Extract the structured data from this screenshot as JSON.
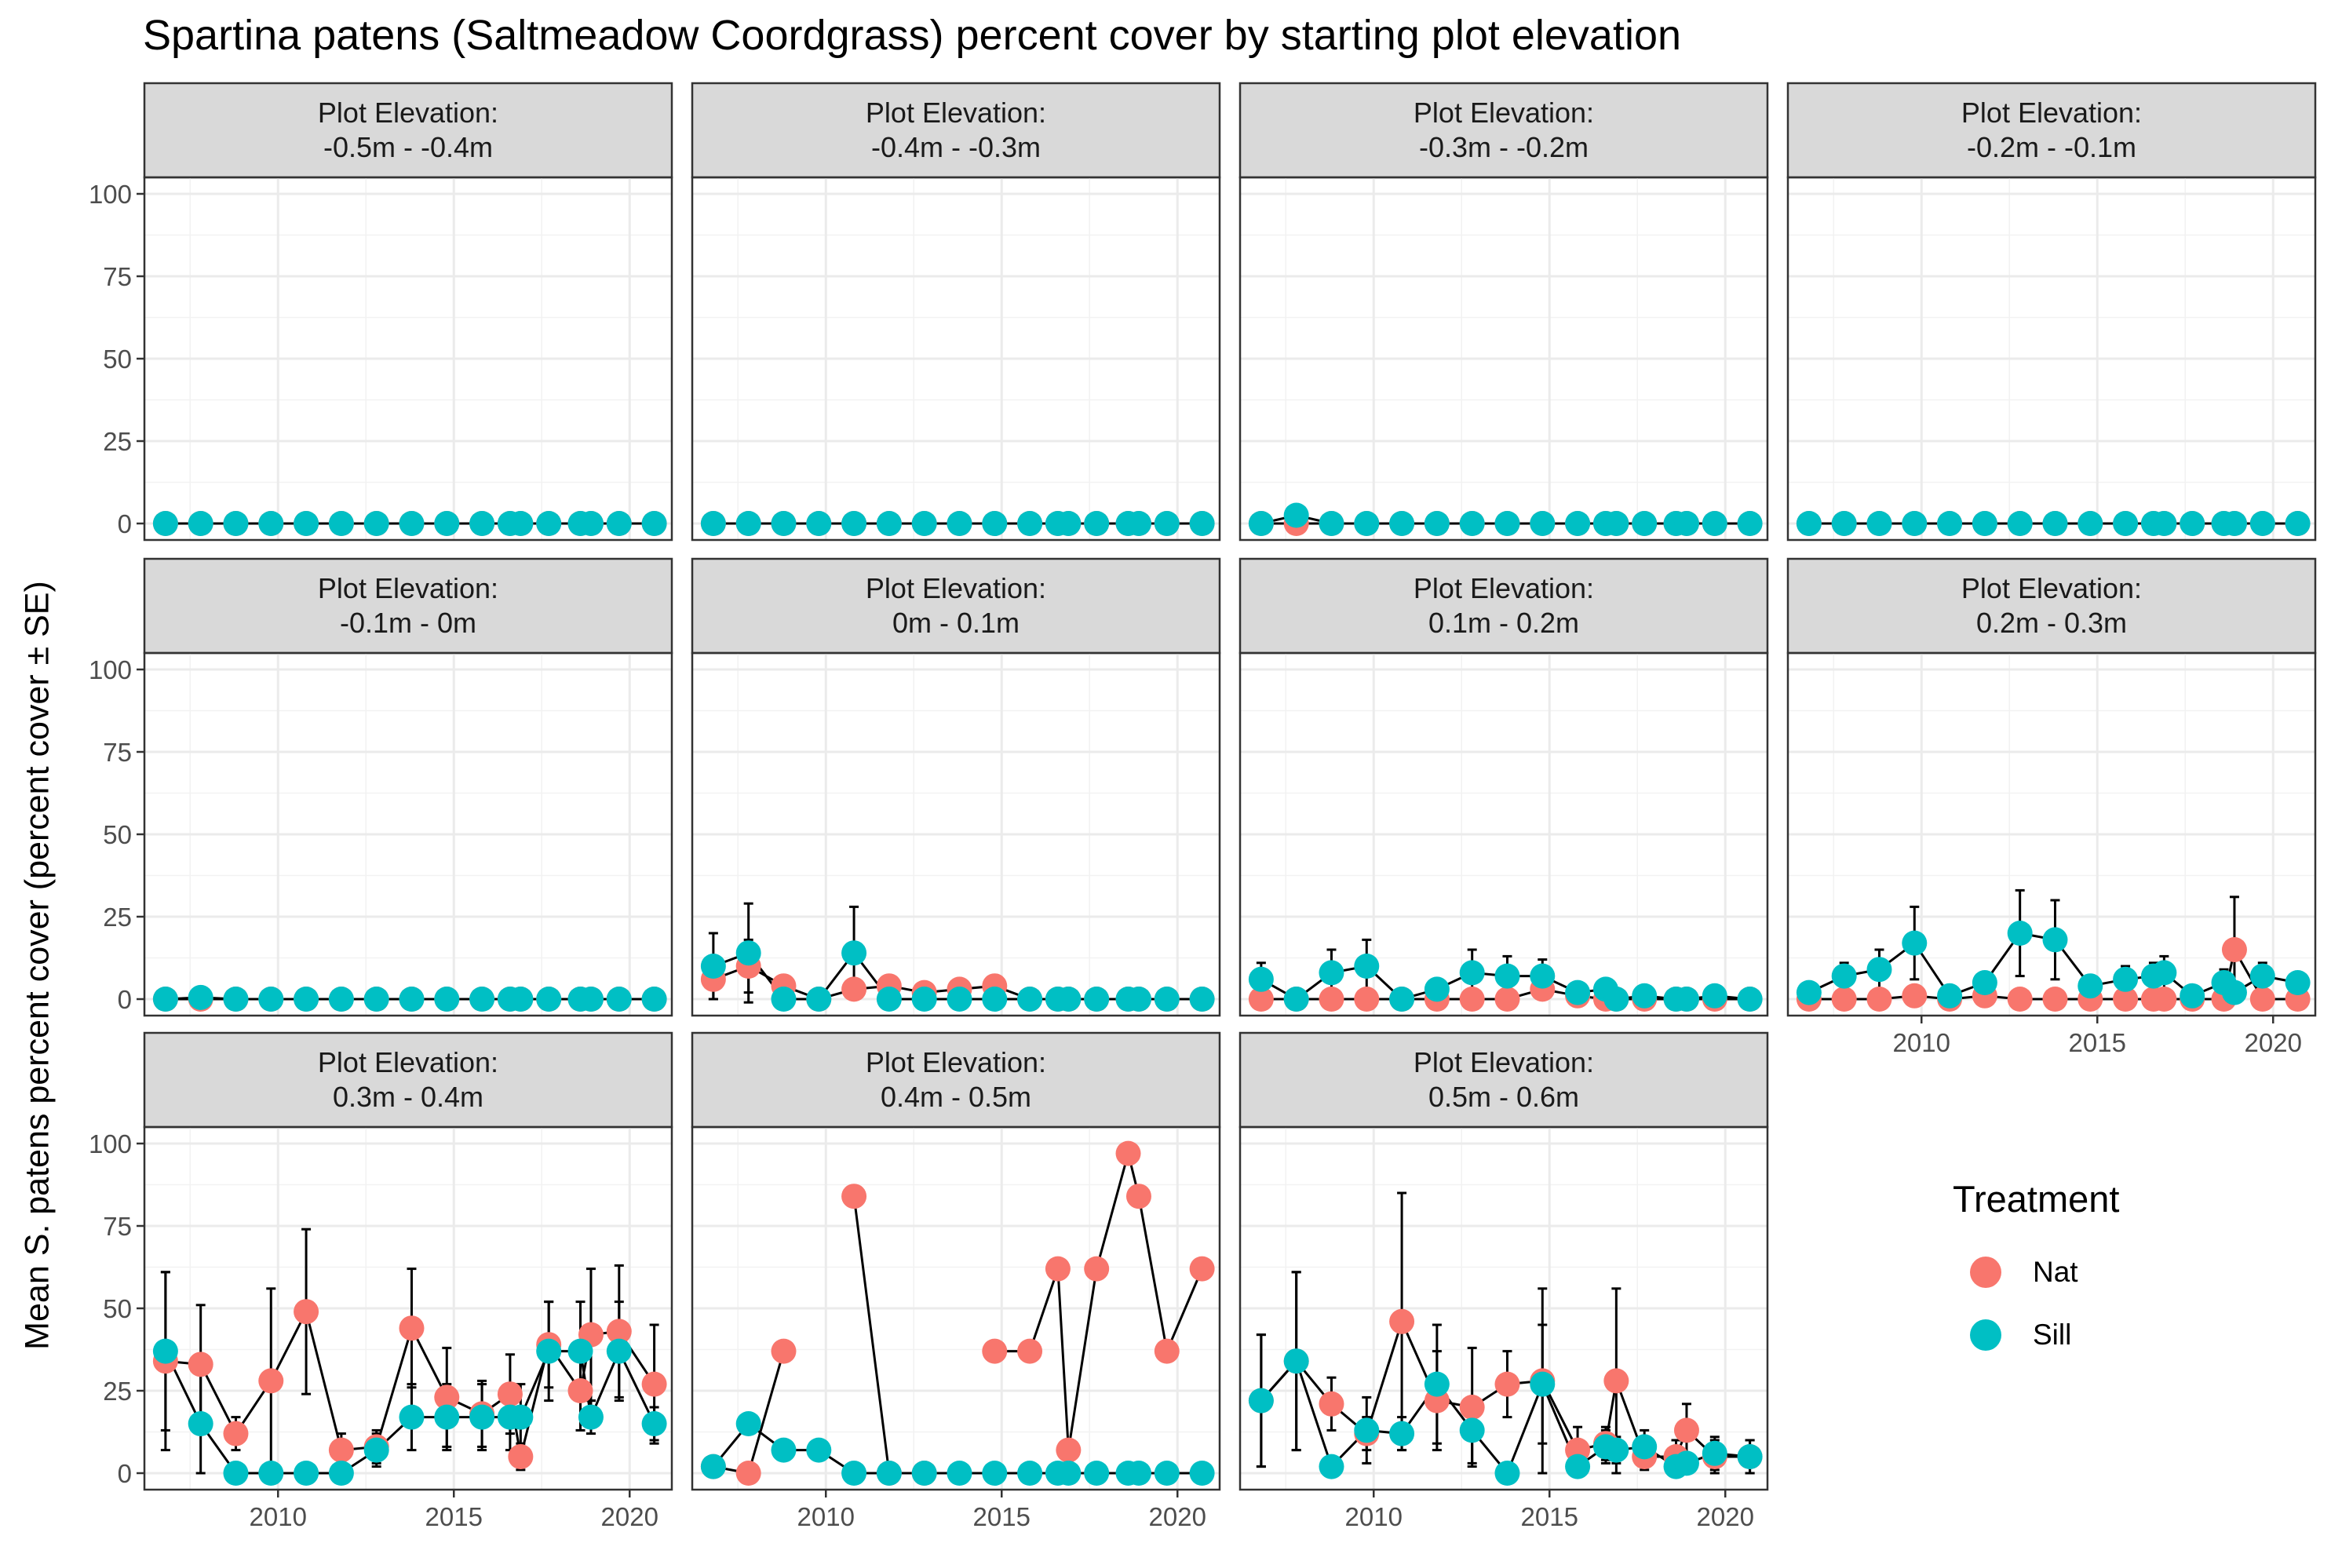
{
  "chart_data": {
    "type": "scatter",
    "title": "Spartina patens (Saltmeadow Coordgrass) percent cover by starting plot elevation",
    "ylabel": "Mean S. patens percent cover (percent cover ± SE)",
    "xlabel": "",
    "xlim": [
      2006.2,
      2021.2
    ],
    "ylim": [
      -5,
      105
    ],
    "x_ticks": [
      2010,
      2015,
      2020
    ],
    "y_ticks": [
      0,
      25,
      50,
      75,
      100
    ],
    "grid": true,
    "facet_label_prefix": "Plot Elevation:",
    "legend": {
      "title": "Treatment",
      "position": "right",
      "entries": [
        {
          "name": "Nat",
          "color": "#F8766D"
        },
        {
          "name": "Sill",
          "color": "#00BFC4"
        }
      ]
    },
    "dates": [
      2006.8,
      2007.8,
      2008.8,
      2009.8,
      2010.8,
      2011.8,
      2012.8,
      2013.8,
      2014.8,
      2015.8,
      2016.6,
      2016.9,
      2017.7,
      2018.6,
      2018.9,
      2019.7,
      2020.7
    ],
    "panels": [
      {
        "label": "-0.5m - -0.4m",
        "nat": [
          0,
          0,
          0,
          0,
          0,
          0,
          0,
          0,
          0,
          0,
          0,
          0,
          0,
          0,
          0,
          0,
          0
        ],
        "sill": [
          0,
          0,
          0,
          0,
          0,
          0,
          0,
          0,
          0,
          0,
          0,
          0,
          0,
          0,
          0,
          0,
          0
        ]
      },
      {
        "label": "-0.4m - -0.3m",
        "nat": [
          0,
          0,
          0,
          0,
          0,
          0,
          0,
          0,
          0,
          0,
          0,
          0,
          0,
          0,
          0,
          0,
          0
        ],
        "sill": [
          0,
          0,
          0,
          0,
          0,
          0,
          0,
          0,
          0,
          0,
          0,
          0,
          0,
          0,
          0,
          0,
          0
        ]
      },
      {
        "label": "-0.3m - -0.2m",
        "nat": [
          0,
          0,
          0,
          0,
          0,
          0,
          0,
          0,
          0,
          0,
          0,
          0,
          0,
          0,
          0,
          0,
          0
        ],
        "sill": [
          0,
          2.5,
          0,
          0,
          0,
          0,
          0,
          0,
          0,
          0,
          0,
          0,
          0,
          0,
          0,
          0,
          0
        ]
      },
      {
        "label": "-0.2m - -0.1m",
        "nat": [
          0,
          0,
          0,
          0,
          0,
          0,
          0,
          0,
          0,
          0,
          0,
          0,
          0,
          0,
          0,
          0,
          0
        ],
        "sill": [
          0,
          0,
          0,
          0,
          0,
          0,
          0,
          0,
          0,
          0,
          0,
          0,
          0,
          0,
          0,
          0,
          0
        ]
      },
      {
        "label": "-0.1m - 0m",
        "nat": [
          0,
          0,
          0,
          0,
          0,
          0,
          0,
          0,
          0,
          0,
          0,
          0,
          0,
          0,
          0,
          0,
          0
        ],
        "sill": [
          0,
          0.5,
          0,
          0,
          0,
          0,
          0,
          0,
          0,
          0,
          0,
          0,
          0,
          0,
          0,
          0,
          0
        ]
      },
      {
        "label": "0m - 0.1m",
        "nat": [
          6,
          10,
          4,
          0,
          3,
          4,
          2,
          3,
          4,
          0,
          0,
          0,
          0,
          0,
          0,
          0,
          0
        ],
        "sill": [
          10,
          14,
          0,
          0,
          14,
          0,
          0,
          0,
          0,
          0,
          0,
          0,
          0,
          0,
          0,
          0,
          0
        ],
        "nat_se": [
          6,
          8,
          3,
          0,
          3,
          3,
          0,
          0,
          2,
          0,
          0,
          0,
          0,
          0,
          0,
          0,
          0
        ],
        "sill_se": [
          10,
          15,
          0,
          0,
          14,
          0,
          0,
          0,
          0,
          0,
          0,
          0,
          0,
          0,
          0,
          0,
          0
        ]
      },
      {
        "label": "0.1m - 0.2m",
        "nat": [
          0,
          0,
          0,
          0,
          0,
          0,
          0,
          0,
          3,
          1,
          0,
          0,
          0,
          0,
          0,
          0,
          0
        ],
        "sill": [
          6,
          0,
          8,
          10,
          0,
          3,
          8,
          7,
          7,
          2,
          3,
          0,
          1,
          0,
          0,
          1,
          0
        ],
        "nat_se": [
          0,
          0,
          0,
          0,
          0,
          0,
          0,
          0,
          2,
          0,
          0,
          0,
          0,
          0,
          0,
          0,
          0
        ],
        "sill_se": [
          5,
          0,
          7,
          8,
          0,
          3,
          7,
          6,
          5,
          2,
          2,
          0,
          1,
          0,
          0,
          1,
          0
        ]
      },
      {
        "label": "0.2m - 0.3m",
        "nat": [
          0,
          0,
          0,
          1,
          0,
          1,
          0,
          0,
          0,
          0,
          0,
          0,
          0,
          0,
          15,
          0,
          0
        ],
        "sill": [
          2,
          7,
          9,
          17,
          1,
          5,
          20,
          18,
          4,
          6,
          7,
          8,
          1,
          5,
          2,
          7,
          5
        ],
        "nat_se": [
          0,
          0,
          0,
          0,
          0,
          0,
          0,
          0,
          0,
          0,
          0,
          0,
          0,
          0,
          16,
          0,
          0
        ],
        "sill_se": [
          2,
          4,
          6,
          11,
          1,
          3,
          13,
          12,
          3,
          4,
          4,
          5,
          1,
          4,
          2,
          4,
          3
        ]
      },
      {
        "label": "0.3m - 0.4m",
        "nat": [
          34,
          33,
          12,
          28,
          49,
          7,
          8,
          44,
          23,
          18,
          24,
          5,
          39,
          25,
          42,
          43,
          27
        ],
        "sill": [
          37,
          15,
          0,
          0,
          0,
          0,
          7,
          17,
          17,
          17,
          17,
          17,
          37,
          37,
          17,
          37,
          15
        ],
        "nat_se": [
          27,
          18,
          5,
          28,
          25,
          5,
          5,
          18,
          15,
          10,
          12,
          4,
          13,
          12,
          20,
          20,
          18
        ],
        "sill_se": [
          24,
          15,
          0,
          0,
          0,
          0,
          5,
          10,
          10,
          10,
          10,
          10,
          15,
          15,
          5,
          15,
          5
        ]
      },
      {
        "label": "0.4m - 0.5m",
        "nat": [
          2,
          0,
          37,
          null,
          84,
          0,
          0,
          null,
          37,
          37,
          62,
          7,
          62,
          97,
          84,
          37,
          62
        ],
        "sill": [
          2,
          15,
          7,
          7,
          0,
          0,
          0,
          0,
          0,
          0,
          0,
          0,
          0,
          0,
          0,
          0,
          0
        ]
      },
      {
        "label": "0.5m - 0.6m",
        "nat": [
          22,
          34,
          21,
          12,
          46,
          22,
          20,
          27,
          28,
          7,
          9,
          28,
          5,
          5,
          13,
          5,
          5
        ],
        "sill": [
          22,
          34,
          2,
          13,
          12,
          27,
          13,
          0,
          27,
          2,
          8,
          7,
          8,
          2,
          3,
          6,
          5
        ],
        "nat_se": [
          20,
          27,
          8,
          5,
          39,
          15,
          18,
          10,
          28,
          7,
          5,
          28,
          4,
          5,
          8,
          5,
          5
        ],
        "sill_se": [
          20,
          27,
          2,
          10,
          5,
          18,
          10,
          0,
          18,
          2,
          5,
          4,
          5,
          2,
          2,
          5,
          5
        ]
      }
    ]
  }
}
